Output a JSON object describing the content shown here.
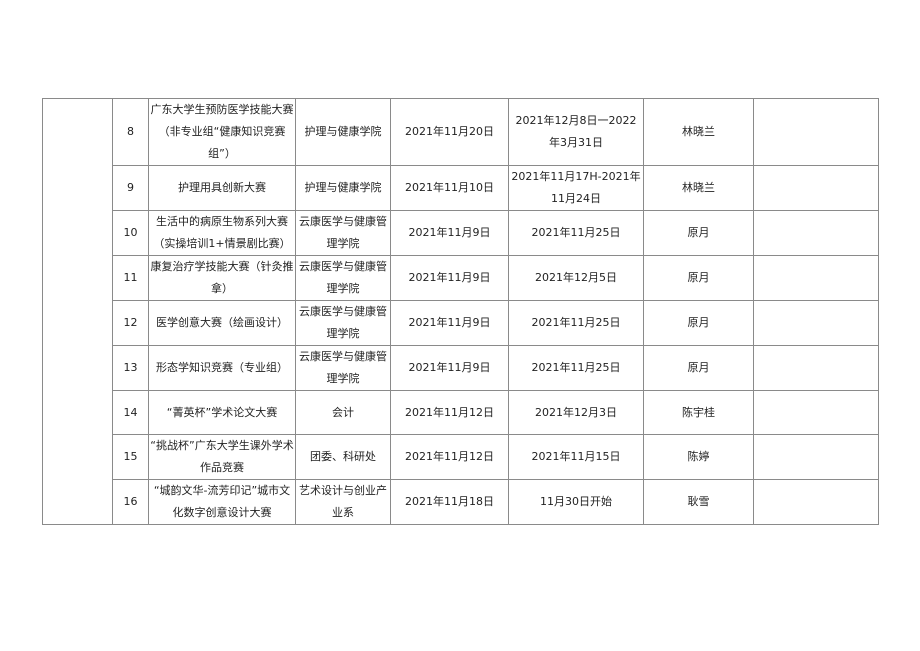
{
  "rows": [
    {
      "no": "8",
      "name": "广东大学生预防医学技能大赛（非专业组“健康知识竞赛组”）",
      "org": "护理与健康学院",
      "start": "2021年11月20日",
      "period": "2021年12月8日一2022年3月31日",
      "contact": "林晓兰",
      "note": ""
    },
    {
      "no": "9",
      "name": "护理用具创新大赛",
      "org": "护理与健康学院",
      "start": "2021年11月10日",
      "period": "2021年11月17H-2021年11月24日",
      "contact": "林晓兰",
      "note": ""
    },
    {
      "no": "10",
      "name": "生活中的病原生物系列大赛（实操培训1+情景剧比赛）",
      "org": "云康医学与健康管理学院",
      "start": "2021年11月9日",
      "period": "2021年11月25日",
      "contact": "原月",
      "note": ""
    },
    {
      "no": "11",
      "name": "康复治疗学技能大赛（针灸推拿）",
      "org": "云康医学与健康管理学院",
      "start": "2021年11月9日",
      "period": "2021年12月5日",
      "contact": "原月",
      "note": ""
    },
    {
      "no": "12",
      "name": "医学创意大赛（绘画设计）",
      "org": "云康医学与健康管理学院",
      "start": "2021年11月9日",
      "period": "2021年11月25日",
      "contact": "原月",
      "note": ""
    },
    {
      "no": "13",
      "name": "形态学知识竞赛（专业组）",
      "org": "云康医学与健康管理学院",
      "start": "2021年11月9日",
      "period": "2021年11月25日",
      "contact": "原月",
      "note": ""
    },
    {
      "no": "14",
      "name": "“菁英杯”学术论文大赛",
      "org": "会计",
      "start": "2021年11月12日",
      "period": "2021年12月3日",
      "contact": "陈宇桂",
      "note": ""
    },
    {
      "no": "15",
      "name": "“挑战杯”广东大学生课外学术作品竞赛",
      "org": "团委、科研处",
      "start": "2021年11月12日",
      "period": "2021年11月15日",
      "contact": "陈婷",
      "note": ""
    },
    {
      "no": "16",
      "name": "“城韵文华-流芳印记”城市文化数字创意设计大赛",
      "org": "艺术设计与创业产业系",
      "start": "2021年11月18日",
      "period": "11月30日开始",
      "contact": "耿雪",
      "note": ""
    }
  ]
}
